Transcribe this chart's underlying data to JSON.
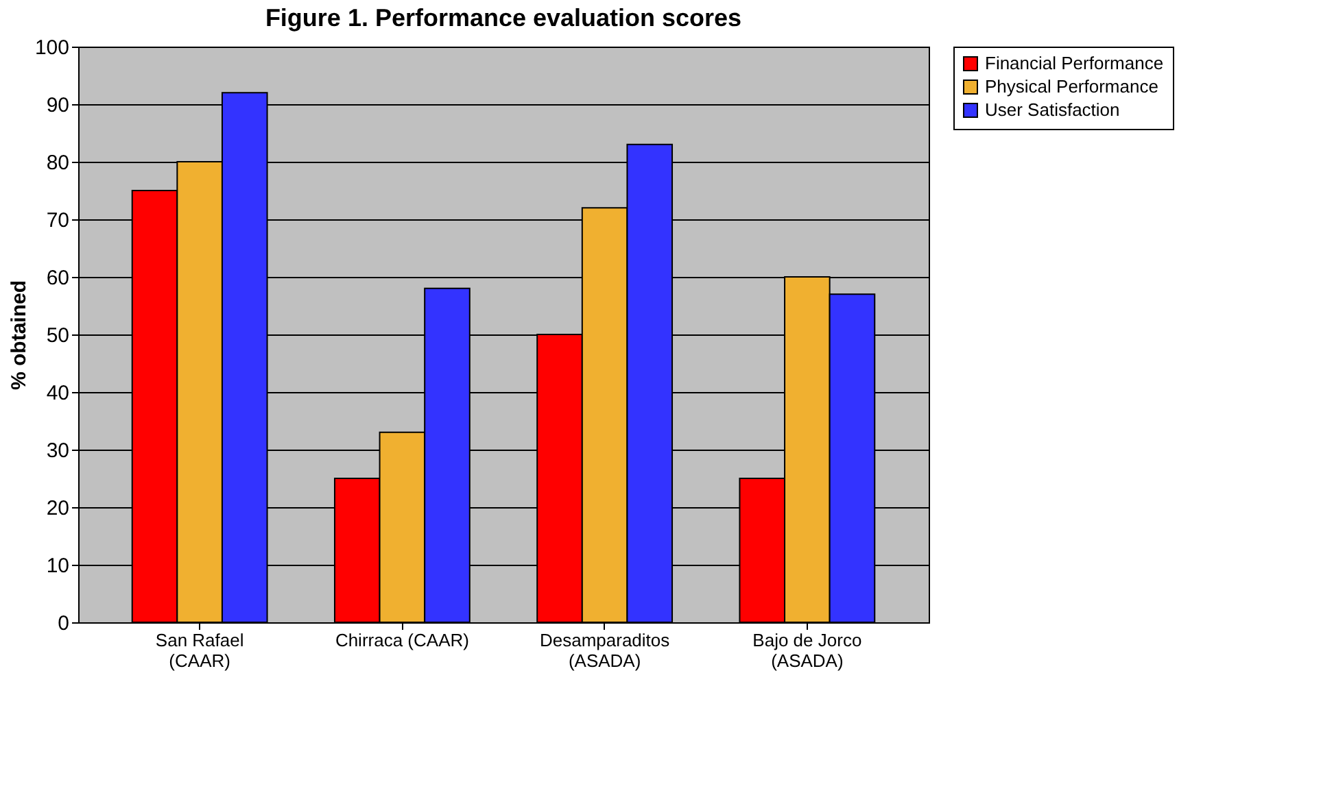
{
  "chart_data": {
    "type": "bar",
    "title": "Figure 1. Performance evaluation scores",
    "ylabel": "% obtained",
    "categories": [
      "San Rafael (CAAR)",
      "Chirraca (CAAR)",
      "Desamparaditos (ASADA)",
      "Bajo de Jorco (ASADA)"
    ],
    "series": [
      {
        "name": "Financial Performance",
        "color": "#ff0000",
        "values": [
          75,
          25,
          50,
          25
        ]
      },
      {
        "name": "Physical Performance",
        "color": "#f0b030",
        "values": [
          80,
          33,
          72,
          60
        ]
      },
      {
        "name": "User Satisfaction",
        "color": "#3333ff",
        "values": [
          92,
          58,
          83,
          57
        ]
      }
    ],
    "ylim": [
      0,
      100
    ],
    "yticks": [
      0,
      10,
      20,
      30,
      40,
      50,
      60,
      70,
      80,
      90,
      100
    ],
    "grid": "y",
    "legend": "right"
  }
}
